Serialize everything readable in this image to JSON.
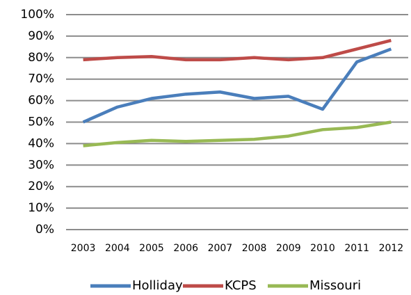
{
  "chart_data": {
    "type": "line",
    "categories": [
      "2003",
      "2004",
      "2005",
      "2006",
      "2007",
      "2008",
      "2009",
      "2010",
      "2011",
      "2012"
    ],
    "series": [
      {
        "name": "Holliday",
        "color": "#4a7ebb",
        "values": [
          50,
          57,
          61,
          63,
          64,
          61,
          62,
          56,
          78,
          84
        ]
      },
      {
        "name": "KCPS",
        "color": "#be4b48",
        "values": [
          79,
          80,
          80.5,
          79,
          79,
          80,
          79,
          80,
          84,
          88
        ]
      },
      {
        "name": "Missouri",
        "color": "#98b954",
        "values": [
          39,
          40.5,
          41.5,
          41,
          41.5,
          42,
          43.5,
          46.5,
          47.5,
          50
        ]
      }
    ],
    "ylim": [
      0,
      100
    ],
    "yticks": [
      {
        "value": 0,
        "label": "0%"
      },
      {
        "value": 10,
        "label": "10%"
      },
      {
        "value": 20,
        "label": "20%"
      },
      {
        "value": 30,
        "label": "30%"
      },
      {
        "value": 40,
        "label": "40%"
      },
      {
        "value": 50,
        "label": "50%"
      },
      {
        "value": 60,
        "label": "60%"
      },
      {
        "value": 70,
        "label": "70%"
      },
      {
        "value": 80,
        "label": "80%"
      },
      {
        "value": 90,
        "label": "90%"
      },
      {
        "value": 100,
        "label": "100%"
      }
    ],
    "grid": true,
    "legend": "bottom"
  }
}
